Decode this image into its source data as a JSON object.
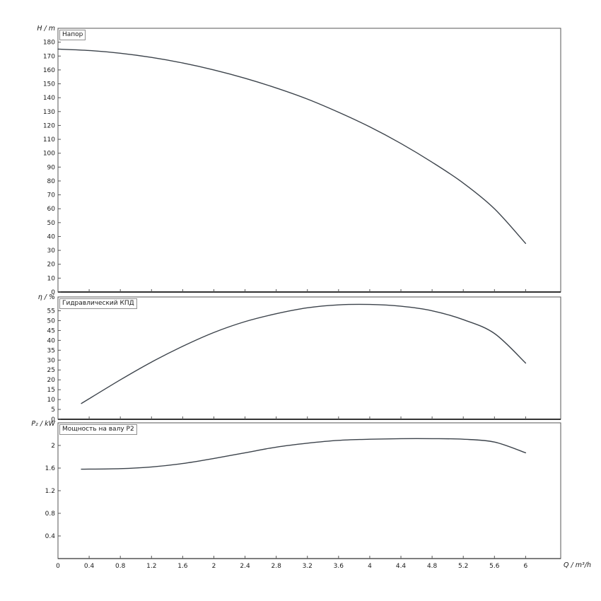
{
  "figure": {
    "background": "#ffffff",
    "curve_color": "#3c434b",
    "axis_color": "#555555"
  },
  "x_axis": {
    "label": "Q / m³/h",
    "xlim": [
      0,
      6.45
    ],
    "ticks": [
      "0",
      "0.4",
      "0.8",
      "1.2",
      "1.6",
      "2",
      "2.4",
      "2.8",
      "3.2",
      "3.6",
      "4",
      "4.4",
      "4.8",
      "5.2",
      "5.6",
      "6"
    ]
  },
  "chart_data": [
    {
      "type": "line",
      "title": "Напор",
      "ylabel": "H / m",
      "ylim": [
        0,
        190
      ],
      "yticks": [
        0,
        10,
        20,
        30,
        40,
        50,
        60,
        70,
        80,
        90,
        100,
        110,
        120,
        130,
        140,
        150,
        160,
        170,
        180
      ],
      "x": [
        0,
        0.4,
        0.8,
        1.2,
        1.6,
        2,
        2.4,
        2.8,
        3.2,
        3.6,
        4,
        4.4,
        4.8,
        5.2,
        5.6,
        6
      ],
      "y": [
        175,
        174,
        172,
        169,
        165,
        160,
        154,
        147,
        139,
        129.5,
        119,
        107,
        93.5,
        78.5,
        60,
        35
      ]
    },
    {
      "type": "line",
      "title": "Гидравлический КПД",
      "ylabel": "η / %",
      "ylim": [
        0,
        62
      ],
      "yticks": [
        0,
        5,
        10,
        15,
        20,
        25,
        30,
        35,
        40,
        45,
        50,
        55
      ],
      "x": [
        0.3,
        0.8,
        1.2,
        1.6,
        2,
        2.4,
        2.8,
        3.2,
        3.6,
        4,
        4.4,
        4.8,
        5.2,
        5.6,
        6
      ],
      "y": [
        8,
        20,
        29,
        37,
        44,
        49.5,
        53.5,
        56.5,
        58,
        58.2,
        57.3,
        55,
        50.5,
        43.5,
        28.5
      ]
    },
    {
      "type": "line",
      "title": "Мощность на валу P2",
      "ylabel": "P₂ / kW",
      "ylim": [
        0,
        2.4
      ],
      "yticks": [
        0.4,
        0.8,
        1.2,
        1.6,
        2
      ],
      "x": [
        0.3,
        0.8,
        1.2,
        1.6,
        2,
        2.4,
        2.8,
        3.2,
        3.6,
        4,
        4.4,
        4.8,
        5.2,
        5.6,
        6
      ],
      "y": [
        1.58,
        1.59,
        1.62,
        1.68,
        1.77,
        1.87,
        1.97,
        2.04,
        2.09,
        2.11,
        2.12,
        2.12,
        2.11,
        2.06,
        1.87
      ]
    }
  ]
}
